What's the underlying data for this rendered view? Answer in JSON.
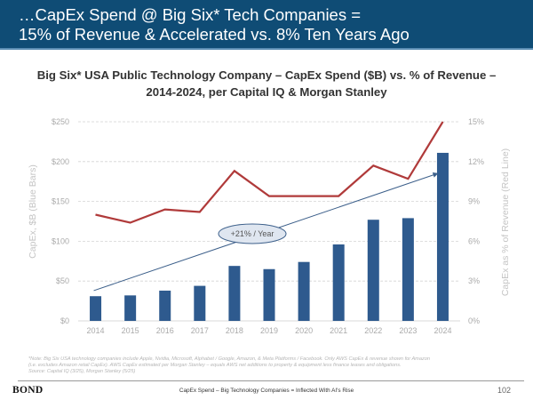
{
  "header": {
    "line1": "…CapEx Spend @ Big Six* Tech Companies =",
    "line2": "15% of Revenue & Accelerated vs. 8% Ten Years Ago"
  },
  "colors": {
    "header_bg": "#0f4c75",
    "bar": "#2e5a8e",
    "line": "#b03a3a",
    "trend": "#3c5f8a",
    "annotation_fill": "#dfe6f0"
  },
  "chart_data": {
    "type": "bar",
    "title_line1": "Big Six* USA Public Technology Company – CapEx Spend ($B) vs. % of Revenue –",
    "title_line2": "2014-2024, per Capital IQ & Morgan Stanley",
    "categories": [
      "2014",
      "2015",
      "2016",
      "2017",
      "2018",
      "2019",
      "2020",
      "2021",
      "2022",
      "2023",
      "2024"
    ],
    "series": [
      {
        "name": "CapEx, $B (Blue Bars)",
        "type": "bar",
        "axis": "left",
        "values": [
          31,
          32,
          38,
          44,
          69,
          65,
          74,
          96,
          127,
          129,
          211
        ]
      },
      {
        "name": "CapEx as % of Revenue (Red Line)",
        "type": "line",
        "axis": "right",
        "values": [
          8.0,
          7.4,
          8.4,
          8.2,
          11.3,
          9.4,
          9.4,
          9.4,
          11.7,
          10.7,
          15.0
        ]
      }
    ],
    "ylabel": "CapEx, $B (Blue Bars)",
    "y2label": "CapEx as % of Revenue (Red Line)",
    "ylim": [
      0,
      250
    ],
    "y2lim": [
      0,
      15
    ],
    "yticks": [
      "$0",
      "$50",
      "$100",
      "$150",
      "$200",
      "$250"
    ],
    "y2ticks": [
      "0%",
      "3%",
      "6%",
      "9%",
      "12%",
      "15%"
    ],
    "grid": true,
    "annotation": {
      "text": "+21% / Year",
      "trend_from": {
        "category": "2014",
        "value": 38
      },
      "trend_to": {
        "category": "2024",
        "value": 185
      }
    }
  },
  "footnote": {
    "line1": "*Note: Big Six USA technology companies include Apple, Nvidia, Microsoft, Alphabet / Google, Amazon, & Meta Platforms / Facebook. Only AWS CapEx & revenue shown for Amazon",
    "line2": "(i.e. excludes Amazon retail CapEx). AWS CapEx estimated per Morgan Stanley – equals AWS net additions to property & equipment less finance leases and obligations.",
    "line3": "Source: Capital IQ (3/25), Morgan Stanley (5/25)"
  },
  "footer": {
    "logo": "BOND",
    "center_text": "CapEx Spend – Big Technology Companies = Inflected With AI's Rise",
    "page_number": "102"
  }
}
